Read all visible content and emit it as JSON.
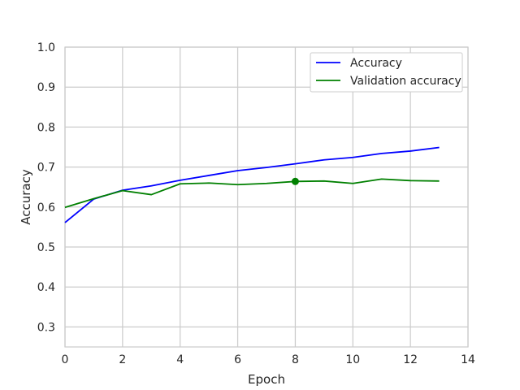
{
  "chart_data": {
    "type": "line",
    "title": "",
    "xlabel": "Epoch",
    "ylabel": "Accuracy",
    "xlim": [
      0,
      14
    ],
    "ylim": [
      0.25,
      1.0
    ],
    "xticks": [
      0,
      2,
      4,
      6,
      8,
      10,
      12,
      14
    ],
    "yticks": [
      0.3,
      0.4,
      0.5,
      0.6,
      0.7,
      0.8,
      0.9,
      1.0
    ],
    "xtick_labels": [
      "0",
      "2",
      "4",
      "6",
      "8",
      "10",
      "12",
      "14"
    ],
    "ytick_labels": [
      "0.3",
      "0.4",
      "0.5",
      "0.6",
      "0.7",
      "0.8",
      "0.9",
      "1.0"
    ],
    "grid": true,
    "legend_position": "top-right",
    "series": [
      {
        "name": "Accuracy",
        "color": "#0000ff",
        "x": [
          0,
          1,
          2,
          3,
          4,
          5,
          6,
          7,
          8,
          9,
          10,
          11,
          12,
          13
        ],
        "y": [
          0.561,
          0.62,
          0.642,
          0.653,
          0.667,
          0.679,
          0.691,
          0.699,
          0.708,
          0.718,
          0.724,
          0.734,
          0.74,
          0.749
        ]
      },
      {
        "name": "Validation accuracy",
        "color": "#008000",
        "x": [
          0,
          1,
          2,
          3,
          4,
          5,
          6,
          7,
          8,
          9,
          10,
          11,
          12,
          13
        ],
        "y": [
          0.599,
          0.621,
          0.641,
          0.631,
          0.658,
          0.66,
          0.656,
          0.659,
          0.664,
          0.665,
          0.659,
          0.67,
          0.666,
          0.665
        ]
      }
    ],
    "highlight_point": {
      "series": "Validation accuracy",
      "x": 8,
      "y": 0.664,
      "color": "#008000"
    }
  }
}
